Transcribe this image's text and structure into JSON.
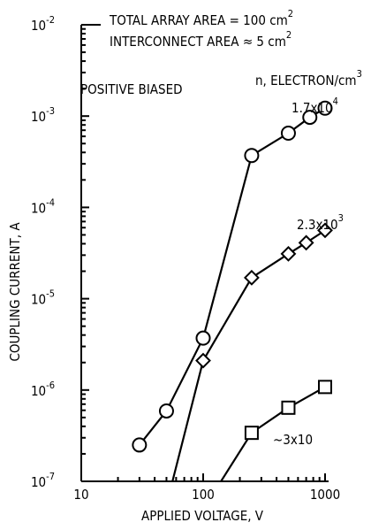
{
  "chart_data": {
    "type": "line",
    "xscale": "log",
    "yscale": "log",
    "xlim": [
      10,
      10000
    ],
    "ylim": [
      1e-07,
      0.01
    ],
    "xlabel": "APPLIED VOLTAGE, V",
    "ylabel": "COUPLING CURRENT, A",
    "x_tick_labels": [
      "10",
      "100",
      "1000"
    ],
    "x_ticks": [
      10,
      100,
      1000
    ],
    "y_ticks": [
      1e-07,
      1e-06,
      1e-05,
      0.0001,
      0.001,
      0.01
    ],
    "y_tick_base": [
      "10",
      "10",
      "10",
      "10",
      "10",
      "10"
    ],
    "y_tick_exp": [
      "-7",
      "-6",
      "-5",
      "-4",
      "-3",
      "-2"
    ],
    "annotation_lines": [
      {
        "text": "TOTAL ARRAY AREA = 100 cm",
        "sup": "2"
      },
      {
        "text": "INTERCONNECT AREA ≈ 5 cm",
        "sup": "2"
      }
    ],
    "density_header": {
      "text": "n, ELECTRON/cm",
      "sup": "3"
    },
    "condition_label": "POSITIVE BIASED",
    "series": [
      {
        "name_base": "1.7x10",
        "name_sup": "4",
        "marker": "circle",
        "x": [
          250,
          500,
          750,
          1000
        ],
        "y": [
          0.00037,
          0.00065,
          0.00097,
          0.00122
        ]
      },
      {
        "name_base": "2.3x10",
        "name_sup": "3",
        "marker": "diamond",
        "x": [
          250,
          500,
          700,
          1000
        ],
        "y": [
          1.7e-05,
          3.1e-05,
          4.1e-05,
          5.6e-05
        ]
      },
      {
        "name_base": "~3x10",
        "name_sup": "",
        "marker": "square",
        "x": [
          250,
          500,
          1000
        ],
        "y": [
          3.4e-07,
          6.4e-07,
          1.08e-06
        ]
      }
    ],
    "low_voltage_points": {
      "circle": {
        "x": [
          30,
          50,
          100
        ],
        "y": [
          2.5e-07,
          5.9e-07,
          3.7e-06
        ]
      },
      "diamond": {
        "x": [
          100
        ],
        "y": [
          2.1e-06
        ]
      }
    },
    "fit_lines": [
      {
        "x": [
          30,
          50,
          100,
          250
        ],
        "y": [
          2.5e-07,
          5.9e-07,
          3.7e-06,
          0.00037
        ]
      },
      {
        "x": [
          56,
          100,
          250
        ],
        "y": [
          1e-07,
          2.1e-06,
          1.7e-05
        ]
      },
      {
        "x": [
          140,
          250
        ],
        "y": [
          1e-07,
          3.4e-07
        ]
      }
    ]
  }
}
